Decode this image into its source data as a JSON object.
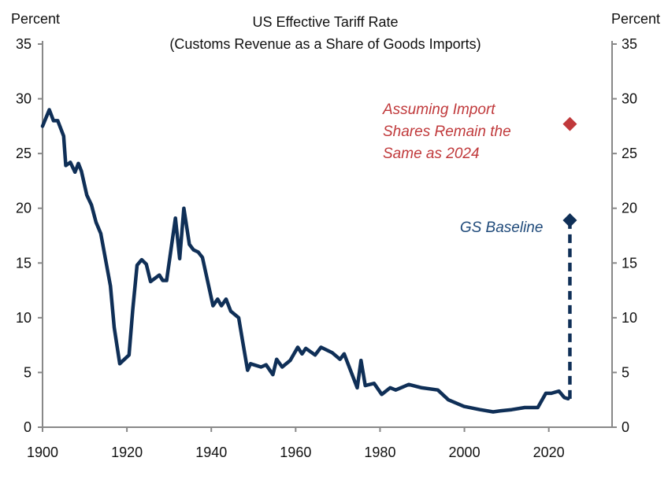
{
  "chart_data": {
    "type": "line",
    "title": "US Effective Tariff Rate",
    "subtitle": "(Customs Revenue  as a Share of Goods Imports)",
    "ylabel_left": "Percent",
    "ylabel_right": "Percent",
    "xlim": [
      1900,
      2035
    ],
    "ylim": [
      0,
      35
    ],
    "x_ticks": [
      1900,
      1920,
      1940,
      1960,
      1980,
      2000,
      2020
    ],
    "y_ticks": [
      0,
      5,
      10,
      15,
      20,
      25,
      30,
      35
    ],
    "grid": false,
    "series": [
      {
        "name": "Effective tariff rate",
        "color": "#0f2f57",
        "points": [
          [
            1900,
            27.5
          ],
          [
            1901.6,
            29.0
          ],
          [
            1902.6,
            28.0
          ],
          [
            1903.6,
            28.0
          ],
          [
            1905,
            26.6
          ],
          [
            1905.5,
            23.9
          ],
          [
            1906.6,
            24.2
          ],
          [
            1907.7,
            23.3
          ],
          [
            1908.5,
            24.1
          ],
          [
            1909.2,
            23.4
          ],
          [
            1910.5,
            21.2
          ],
          [
            1911.6,
            20.3
          ],
          [
            1912.7,
            18.7
          ],
          [
            1913.8,
            17.7
          ],
          [
            1916.1,
            12.9
          ],
          [
            1917,
            9.1
          ],
          [
            1918.3,
            5.8
          ],
          [
            1920.5,
            6.6
          ],
          [
            1921.4,
            10.8
          ],
          [
            1922.4,
            14.8
          ],
          [
            1923.5,
            15.3
          ],
          [
            1924.6,
            14.9
          ],
          [
            1925.6,
            13.3
          ],
          [
            1927.7,
            13.9
          ],
          [
            1928.5,
            13.4
          ],
          [
            1929.4,
            13.4
          ],
          [
            1931.5,
            19.1
          ],
          [
            1932.5,
            15.4
          ],
          [
            1933.5,
            20.0
          ],
          [
            1934.8,
            16.7
          ],
          [
            1935.8,
            16.2
          ],
          [
            1936.9,
            16.0
          ],
          [
            1937.9,
            15.5
          ],
          [
            1940.4,
            11.1
          ],
          [
            1941.5,
            11.7
          ],
          [
            1942.4,
            11.1
          ],
          [
            1943.5,
            11.7
          ],
          [
            1944.6,
            10.6
          ],
          [
            1946.5,
            10.0
          ],
          [
            1947.4,
            7.9
          ],
          [
            1948.6,
            5.2
          ],
          [
            1949.3,
            5.8
          ],
          [
            1951.8,
            5.5
          ],
          [
            1953,
            5.7
          ],
          [
            1954.6,
            4.8
          ],
          [
            1955.5,
            6.2
          ],
          [
            1956.8,
            5.5
          ],
          [
            1958.7,
            6.1
          ],
          [
            1960.5,
            7.3
          ],
          [
            1961.5,
            6.7
          ],
          [
            1962.4,
            7.2
          ],
          [
            1964.6,
            6.6
          ],
          [
            1966,
            7.3
          ],
          [
            1968.7,
            6.8
          ],
          [
            1970.5,
            6.2
          ],
          [
            1971.5,
            6.7
          ],
          [
            1974.6,
            3.6
          ],
          [
            1975.5,
            6.1
          ],
          [
            1976.5,
            3.8
          ],
          [
            1978.6,
            4.0
          ],
          [
            1980.4,
            3.0
          ],
          [
            1982.4,
            3.6
          ],
          [
            1983.7,
            3.4
          ],
          [
            1986.8,
            3.9
          ],
          [
            1989.9,
            3.6
          ],
          [
            1993.7,
            3.4
          ],
          [
            1996.2,
            2.5
          ],
          [
            1999.9,
            1.9
          ],
          [
            2003.7,
            1.6
          ],
          [
            2006.8,
            1.4
          ],
          [
            2008.7,
            1.5
          ],
          [
            2011.2,
            1.6
          ],
          [
            2014.3,
            1.8
          ],
          [
            2017.4,
            1.8
          ],
          [
            2019.3,
            3.1
          ],
          [
            2020.6,
            3.1
          ],
          [
            2022.4,
            3.3
          ],
          [
            2023.7,
            2.7
          ],
          [
            2024.6,
            2.6
          ]
        ]
      }
    ],
    "projections": [
      {
        "name": "GS Baseline",
        "label": "GS Baseline",
        "year": 2025,
        "value": 18.9,
        "from_value": 2.6,
        "color": "#0f2f57",
        "dashed": true
      },
      {
        "name": "Assuming Import Shares Remain the Same as 2024",
        "label_lines": [
          "Assuming Import",
          "Shares Remain the",
          "Same as 2024"
        ],
        "year": 2025,
        "value": 27.7,
        "color": "#c0393b"
      }
    ]
  }
}
